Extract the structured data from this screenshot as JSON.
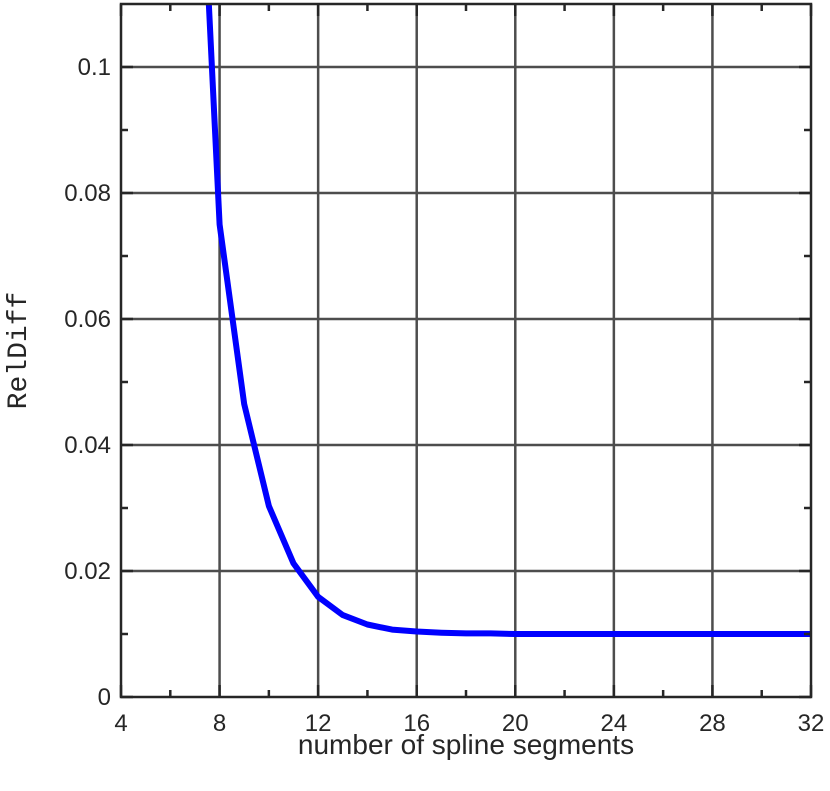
{
  "chart_data": {
    "type": "line",
    "title": "",
    "xlabel": "number of spline segments",
    "ylabel": "RelDiff",
    "xlim": [
      4,
      32
    ],
    "ylim": [
      0,
      0.11
    ],
    "x_ticks": [
      4,
      8,
      12,
      16,
      20,
      24,
      28,
      32
    ],
    "x_tick_labels": [
      "4",
      "8",
      "12",
      "16",
      "20",
      "24",
      "28",
      "32"
    ],
    "x_minor_ticks": [
      6,
      10,
      14,
      18,
      22,
      26,
      30
    ],
    "y_ticks": [
      0,
      0.02,
      0.04,
      0.06,
      0.08,
      0.1
    ],
    "y_tick_labels": [
      "0",
      "0.02",
      "0.04",
      "0.06",
      "0.08",
      "0.1"
    ],
    "y_minor_ticks": [
      0.01,
      0.03,
      0.05,
      0.07,
      0.09
    ],
    "grid": true,
    "series_color": "#0000ff",
    "series": [
      {
        "x": [
          7.5,
          8,
          9,
          10,
          11,
          12,
          13,
          14,
          15,
          16,
          17,
          18,
          19,
          20,
          22,
          24,
          26,
          28,
          30,
          32
        ],
        "y": [
          0.115,
          0.075,
          0.0465,
          0.0303,
          0.0212,
          0.0159,
          0.013,
          0.0115,
          0.0107,
          0.0104,
          0.0102,
          0.0101,
          0.0101,
          0.01,
          0.01,
          0.01,
          0.01,
          0.01,
          0.01,
          0.01
        ]
      }
    ]
  }
}
